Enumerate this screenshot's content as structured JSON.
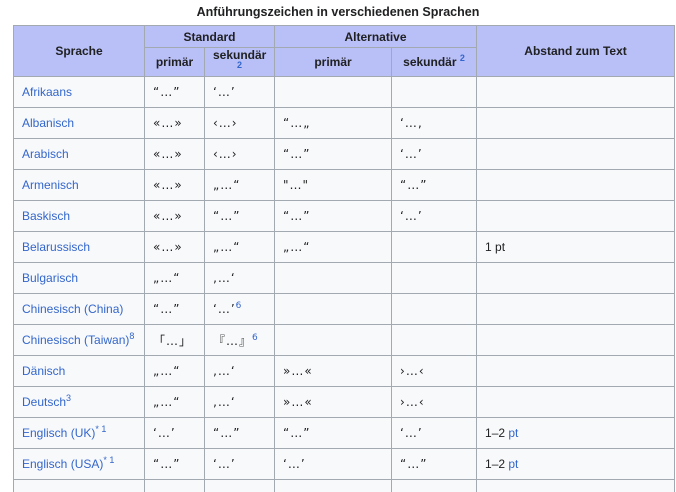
{
  "caption": "Anführungszeichen in verschiedenen Sprachen",
  "headers": {
    "language": "Sprache",
    "standard": "Standard",
    "alternative": "Alternative",
    "spacing": "Abstand zum Text",
    "primary": "primär",
    "secondary": "sekundär",
    "secondary_sup": "2"
  },
  "rows": [
    {
      "lang": "Afrikaans",
      "sup": "",
      "std1": "“…”",
      "std2": "‘…’",
      "std2_sup": "",
      "alt1": "",
      "alt2": "",
      "spacing": "",
      "spacing_unit": ""
    },
    {
      "lang": "Albanisch",
      "sup": "",
      "std1": "«…»",
      "std2": "‹…›",
      "std2_sup": "",
      "alt1": "“…„",
      "alt2": "‘…‚",
      "spacing": "",
      "spacing_unit": ""
    },
    {
      "lang": "Arabisch",
      "sup": "",
      "std1": "«…»",
      "std2": "‹…›",
      "std2_sup": "",
      "alt1": "“…”",
      "alt2": "‘…’",
      "spacing": "",
      "spacing_unit": ""
    },
    {
      "lang": "Armenisch",
      "sup": "",
      "std1": "«…»",
      "std2": "„…“",
      "std2_sup": "",
      "alt1": "\"…\"",
      "alt2": "“…”",
      "spacing": "",
      "spacing_unit": ""
    },
    {
      "lang": "Baskisch",
      "sup": "",
      "std1": "«…»",
      "std2": "“…”",
      "std2_sup": "",
      "alt1": "“…”",
      "alt2": "‘…’",
      "spacing": "",
      "spacing_unit": ""
    },
    {
      "lang": "Belarussisch",
      "sup": "",
      "std1": "«…»",
      "std2": "„…“",
      "std2_sup": "",
      "alt1": "„…“",
      "alt2": "",
      "spacing": "1 pt",
      "spacing_unit": ""
    },
    {
      "lang": "Bulgarisch",
      "sup": "",
      "std1": "„…“",
      "std2": "‚…‘",
      "std2_sup": "",
      "alt1": "",
      "alt2": "",
      "spacing": "",
      "spacing_unit": ""
    },
    {
      "lang": "Chinesisch (China)",
      "sup": "",
      "std1": "“…”",
      "std2": "‘…’",
      "std2_sup": "6",
      "alt1": "",
      "alt2": "",
      "spacing": "",
      "spacing_unit": ""
    },
    {
      "lang": "Chinesisch (Taiwan)",
      "sup": "8",
      "std1": "「…」",
      "std2": "『…』",
      "std2_sup": "6",
      "alt1": "",
      "alt2": "",
      "spacing": "",
      "spacing_unit": ""
    },
    {
      "lang": "Dänisch",
      "sup": "",
      "std1": "„…“",
      "std2": "‚…‘",
      "std2_sup": "",
      "alt1": "»…«",
      "alt2": "›…‹",
      "spacing": "",
      "spacing_unit": ""
    },
    {
      "lang": "Deutsch",
      "sup": "3",
      "std1": "„…“",
      "std2": "‚…‘",
      "std2_sup": "",
      "alt1": "»…«",
      "alt2": "›…‹",
      "spacing": "",
      "spacing_unit": ""
    },
    {
      "lang": "Englisch (UK)",
      "sup": "* 1",
      "std1": "‘…’",
      "std2": "“…”",
      "std2_sup": "",
      "alt1": "“…”",
      "alt2": "‘…’",
      "spacing": "1–2 ",
      "spacing_unit": "pt"
    },
    {
      "lang": "Englisch (USA)",
      "sup": "* 1",
      "std1": "“…”",
      "std2": "‘…’",
      "std2_sup": "",
      "alt1": "‘…’",
      "alt2": "“…”",
      "spacing": "1–2 ",
      "spacing_unit": "pt"
    }
  ]
}
